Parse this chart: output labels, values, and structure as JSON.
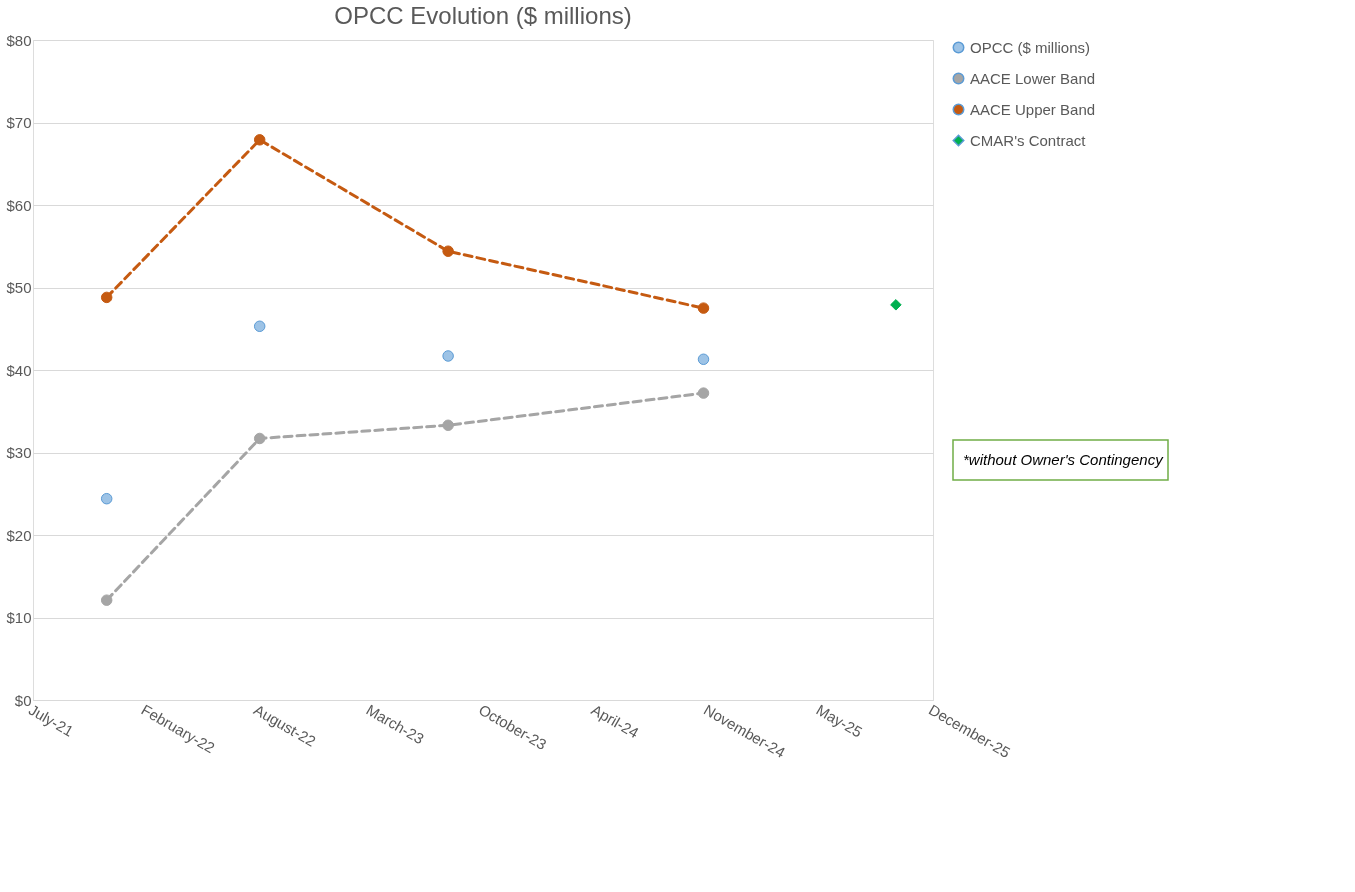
{
  "chart_data": {
    "type": "scatter",
    "title": "OPCC Evolution ($ millions)",
    "x": [
      "2021-12-03",
      "2022-09-01",
      "2023-08-02",
      "2024-10-29"
    ],
    "series": [
      {
        "name": "OPCC ($ millions)",
        "type": "scatter",
        "color": "#9dc3e6",
        "marker": "circle",
        "values": [
          24.4,
          45.3,
          41.7,
          41.3
        ]
      },
      {
        "name": "AACE Lower Band",
        "type": "line",
        "color": "#a5a5a5",
        "marker": "circle",
        "line_style": "dashed",
        "values": [
          12.1,
          31.7,
          33.3,
          37.2
        ]
      },
      {
        "name": "AACE Upper Band",
        "type": "line",
        "color": "#c55a11",
        "marker": "circle",
        "line_style": "dashed",
        "values": [
          48.8,
          67.9,
          54.4,
          47.5
        ]
      },
      {
        "name": "CMAR's Contract",
        "type": "scatter",
        "color": "#00b050",
        "marker": "diamond",
        "x": [
          "2025-10-06"
        ],
        "values": [
          47.9
        ]
      }
    ],
    "xlim": [
      "2021-07-25",
      "2025-12-11"
    ],
    "xticks": [
      {
        "value": "2021-07-25",
        "label": "July-21"
      },
      {
        "value": "2022-02-10",
        "label": "February-22"
      },
      {
        "value": "2022-08-29",
        "label": "August-22"
      },
      {
        "value": "2023-03-17",
        "label": "March-23"
      },
      {
        "value": "2023-10-03",
        "label": "October-23"
      },
      {
        "value": "2024-04-20",
        "label": "April-24"
      },
      {
        "value": "2024-11-06",
        "label": "November-24"
      },
      {
        "value": "2025-05-25",
        "label": "May-25"
      },
      {
        "value": "2025-12-11",
        "label": "December-25"
      }
    ],
    "ylim": [
      0,
      80
    ],
    "yticks": [
      {
        "value": 0,
        "label": "$0"
      },
      {
        "value": 10,
        "label": "$10"
      },
      {
        "value": 20,
        "label": "$20"
      },
      {
        "value": 30,
        "label": "$30"
      },
      {
        "value": 40,
        "label": "$40"
      },
      {
        "value": 50,
        "label": "$50"
      },
      {
        "value": 60,
        "label": "$60"
      },
      {
        "value": 70,
        "label": "$70"
      },
      {
        "value": 80,
        "label": "$80"
      }
    ],
    "grid": "y",
    "legend": "right",
    "annotations": [
      "*without Owner's Contingency"
    ]
  }
}
